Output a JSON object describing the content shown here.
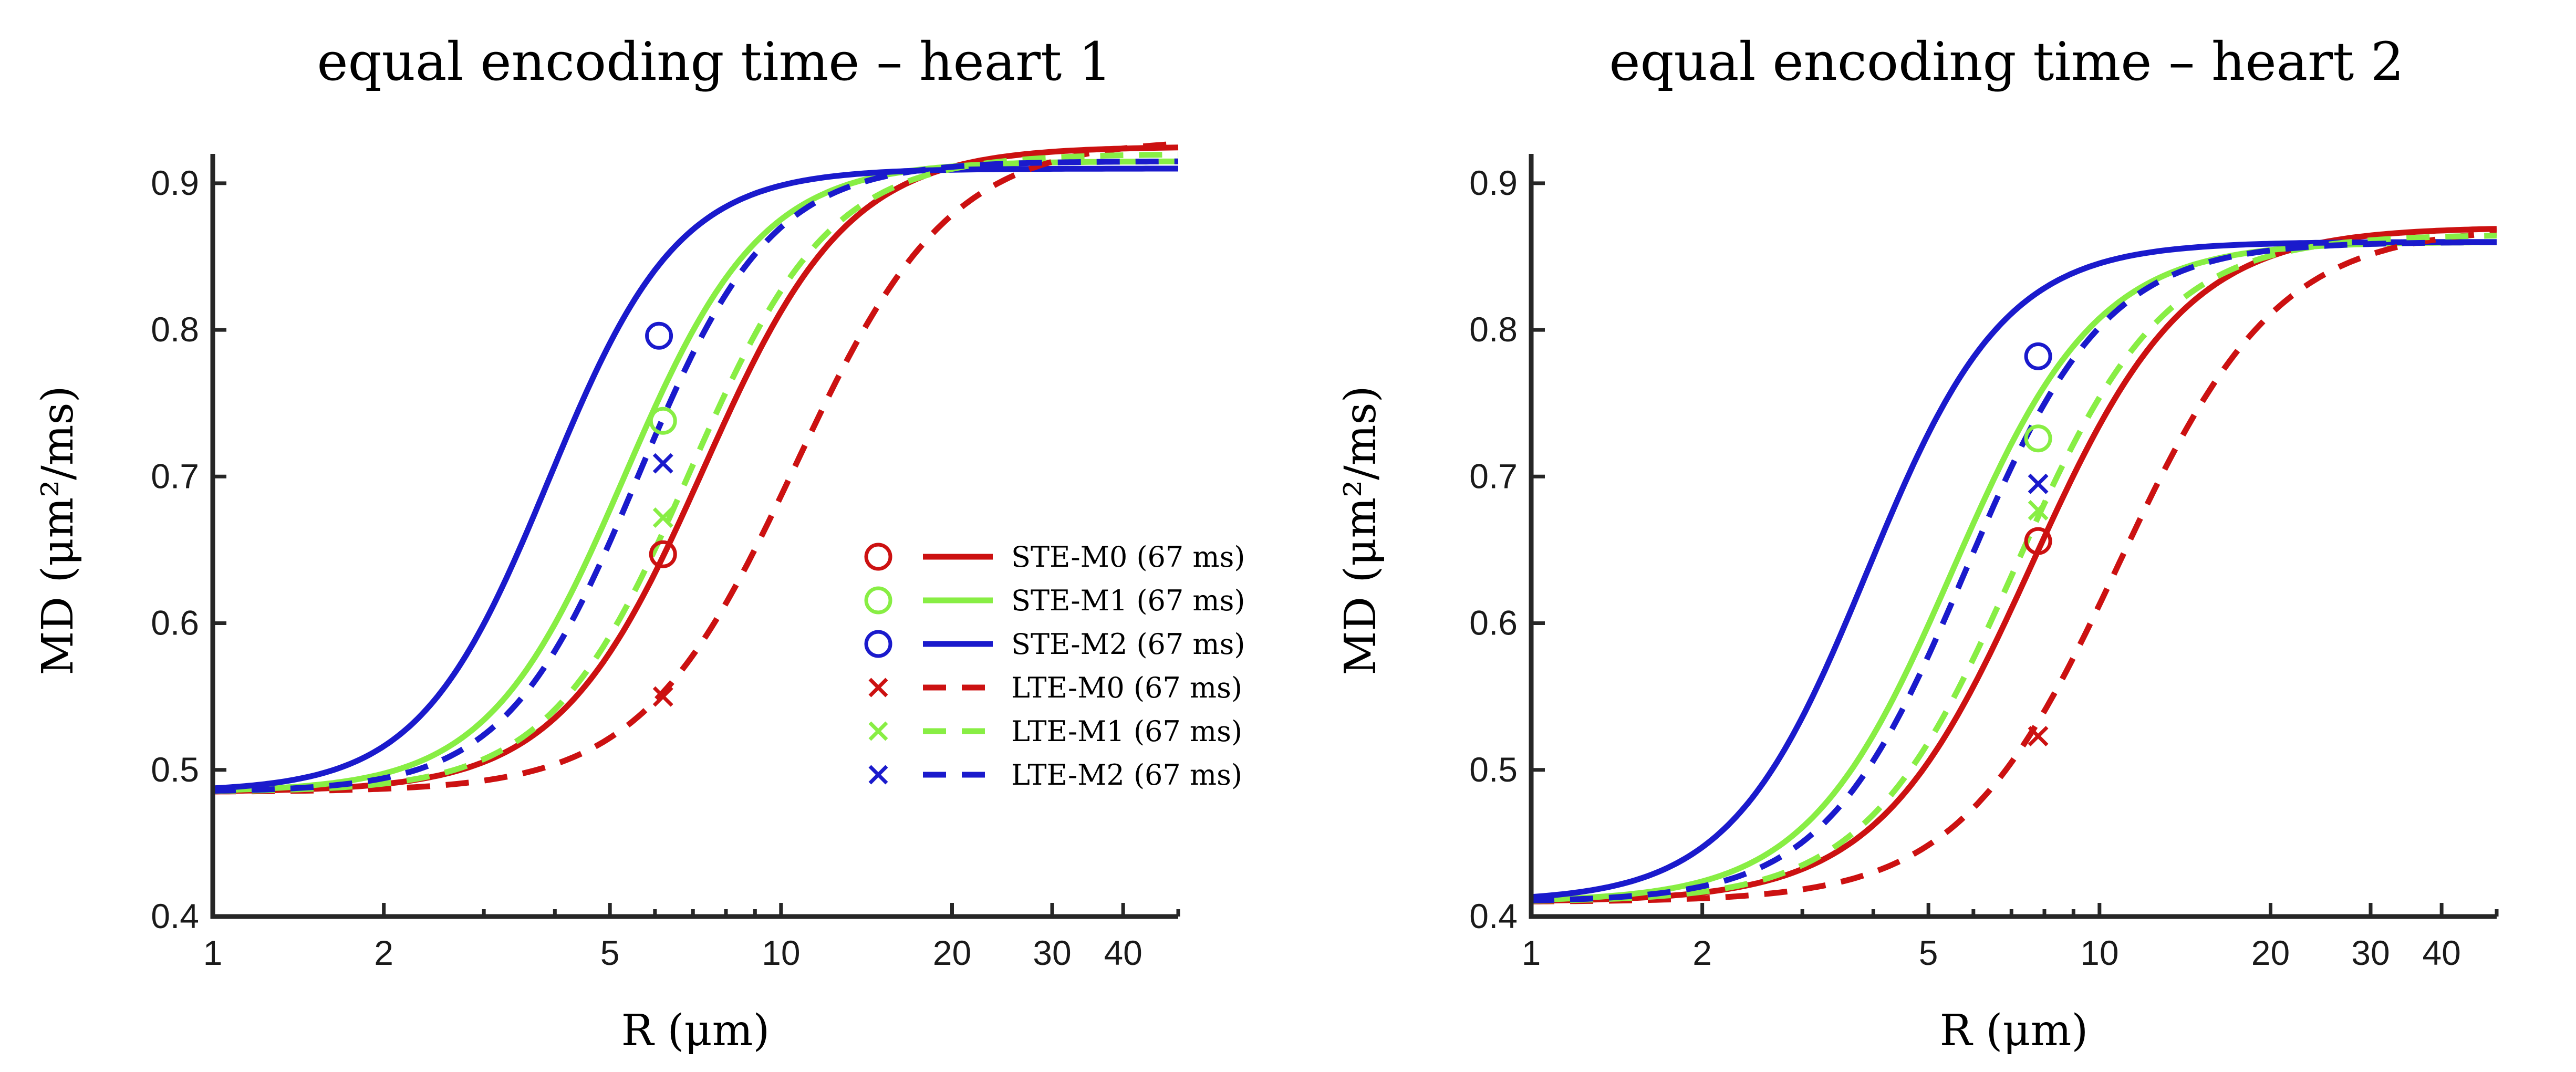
{
  "chart_data": [
    {
      "type": "line",
      "title": "equal encoding time – heart 1",
      "ylabel": "MD (μm²/ms)",
      "xlabel": "R (μm)",
      "xscale": "log",
      "xlim": [
        1,
        50
      ],
      "ylim": [
        0.4,
        0.92
      ],
      "xticks": [
        1,
        2,
        5,
        10,
        20,
        30,
        40
      ],
      "xtick_labels": [
        "1",
        "2",
        "5",
        "10",
        "20",
        "30",
        "40"
      ],
      "yticks": [
        0.4,
        0.5,
        0.6,
        0.7,
        0.8,
        0.9
      ],
      "ytick_labels": [
        "0.4",
        "0.5",
        "0.6",
        "0.7",
        "0.8",
        "0.9"
      ],
      "legend_position": "center-right",
      "series": [
        {
          "name": "STE-M0 (67 ms)",
          "color": "#cc1111",
          "dash": "solid",
          "marker": "circle",
          "d0": 0.485,
          "dinf": 0.925,
          "r50": 7.3,
          "n": 3.4,
          "point": {
            "x": 6.2,
            "y": 0.647
          }
        },
        {
          "name": "STE-M1 (67 ms)",
          "color": "#88ee44",
          "dash": "solid",
          "marker": "circle",
          "d0": 0.485,
          "dinf": 0.915,
          "r50": 5.3,
          "n": 3.6,
          "point": {
            "x": 6.2,
            "y": 0.738
          }
        },
        {
          "name": "STE-M2 (67 ms)",
          "color": "#1a1acc",
          "dash": "solid",
          "marker": "circle",
          "d0": 0.485,
          "dinf": 0.91,
          "r50": 3.9,
          "n": 3.8,
          "point": {
            "x": 6.1,
            "y": 0.796
          }
        },
        {
          "name": "LTE-M0 (67 ms)",
          "color": "#cc1111",
          "dash": "dashed",
          "marker": "x",
          "d0": 0.485,
          "dinf": 0.93,
          "r50": 10.6,
          "n": 3.2,
          "point": {
            "x": 6.2,
            "y": 0.55
          }
        },
        {
          "name": "LTE-M1 (67 ms)",
          "color": "#88ee44",
          "dash": "dashed",
          "marker": "x",
          "d0": 0.485,
          "dinf": 0.92,
          "r50": 6.9,
          "n": 3.5,
          "point": {
            "x": 6.2,
            "y": 0.672
          }
        },
        {
          "name": "LTE-M2 (67 ms)",
          "color": "#1a1acc",
          "dash": "dashed",
          "marker": "x",
          "d0": 0.485,
          "dinf": 0.915,
          "r50": 5.6,
          "n": 3.7,
          "point": {
            "x": 6.2,
            "y": 0.709
          }
        }
      ]
    },
    {
      "type": "line",
      "title": "equal encoding time  – heart 2",
      "ylabel": "MD (μm²/ms)",
      "xlabel": "R (μm)",
      "xscale": "log",
      "xlim": [
        1,
        50
      ],
      "ylim": [
        0.4,
        0.92
      ],
      "xticks": [
        1,
        2,
        5,
        10,
        20,
        30,
        40
      ],
      "xtick_labels": [
        "1",
        "2",
        "5",
        "10",
        "20",
        "30",
        "40"
      ],
      "yticks": [
        0.4,
        0.5,
        0.6,
        0.7,
        0.8,
        0.9
      ],
      "ytick_labels": [
        "0.4",
        "0.5",
        "0.6",
        "0.7",
        "0.8",
        "0.9"
      ],
      "series": [
        {
          "name": "STE-M0 (67 ms)",
          "color": "#cc1111",
          "dash": "solid",
          "marker": "circle",
          "d0": 0.41,
          "dinf": 0.87,
          "r50": 7.6,
          "n": 3.2,
          "point": {
            "x": 7.8,
            "y": 0.656
          }
        },
        {
          "name": "STE-M1 (67 ms)",
          "color": "#88ee44",
          "dash": "solid",
          "marker": "circle",
          "d0": 0.41,
          "dinf": 0.86,
          "r50": 5.5,
          "n": 3.4,
          "point": {
            "x": 7.8,
            "y": 0.726
          }
        },
        {
          "name": "STE-M2 (67 ms)",
          "color": "#1a1acc",
          "dash": "solid",
          "marker": "circle",
          "d0": 0.41,
          "dinf": 0.86,
          "r50": 3.9,
          "n": 3.6,
          "point": {
            "x": 7.8,
            "y": 0.782
          }
        },
        {
          "name": "LTE-M0 (67 ms)",
          "color": "#cc1111",
          "dash": "dashed",
          "marker": "x",
          "d0": 0.41,
          "dinf": 0.87,
          "r50": 10.8,
          "n": 3.1,
          "point": {
            "x": 7.8,
            "y": 0.523
          }
        },
        {
          "name": "LTE-M1 (67 ms)",
          "color": "#88ee44",
          "dash": "dashed",
          "marker": "x",
          "d0": 0.41,
          "dinf": 0.865,
          "r50": 7.1,
          "n": 3.3,
          "point": {
            "x": 7.8,
            "y": 0.677
          }
        },
        {
          "name": "LTE-M2 (67 ms)",
          "color": "#1a1acc",
          "dash": "dashed",
          "marker": "x",
          "d0": 0.41,
          "dinf": 0.86,
          "r50": 5.8,
          "n": 3.5,
          "point": {
            "x": 7.8,
            "y": 0.695
          }
        }
      ]
    }
  ]
}
